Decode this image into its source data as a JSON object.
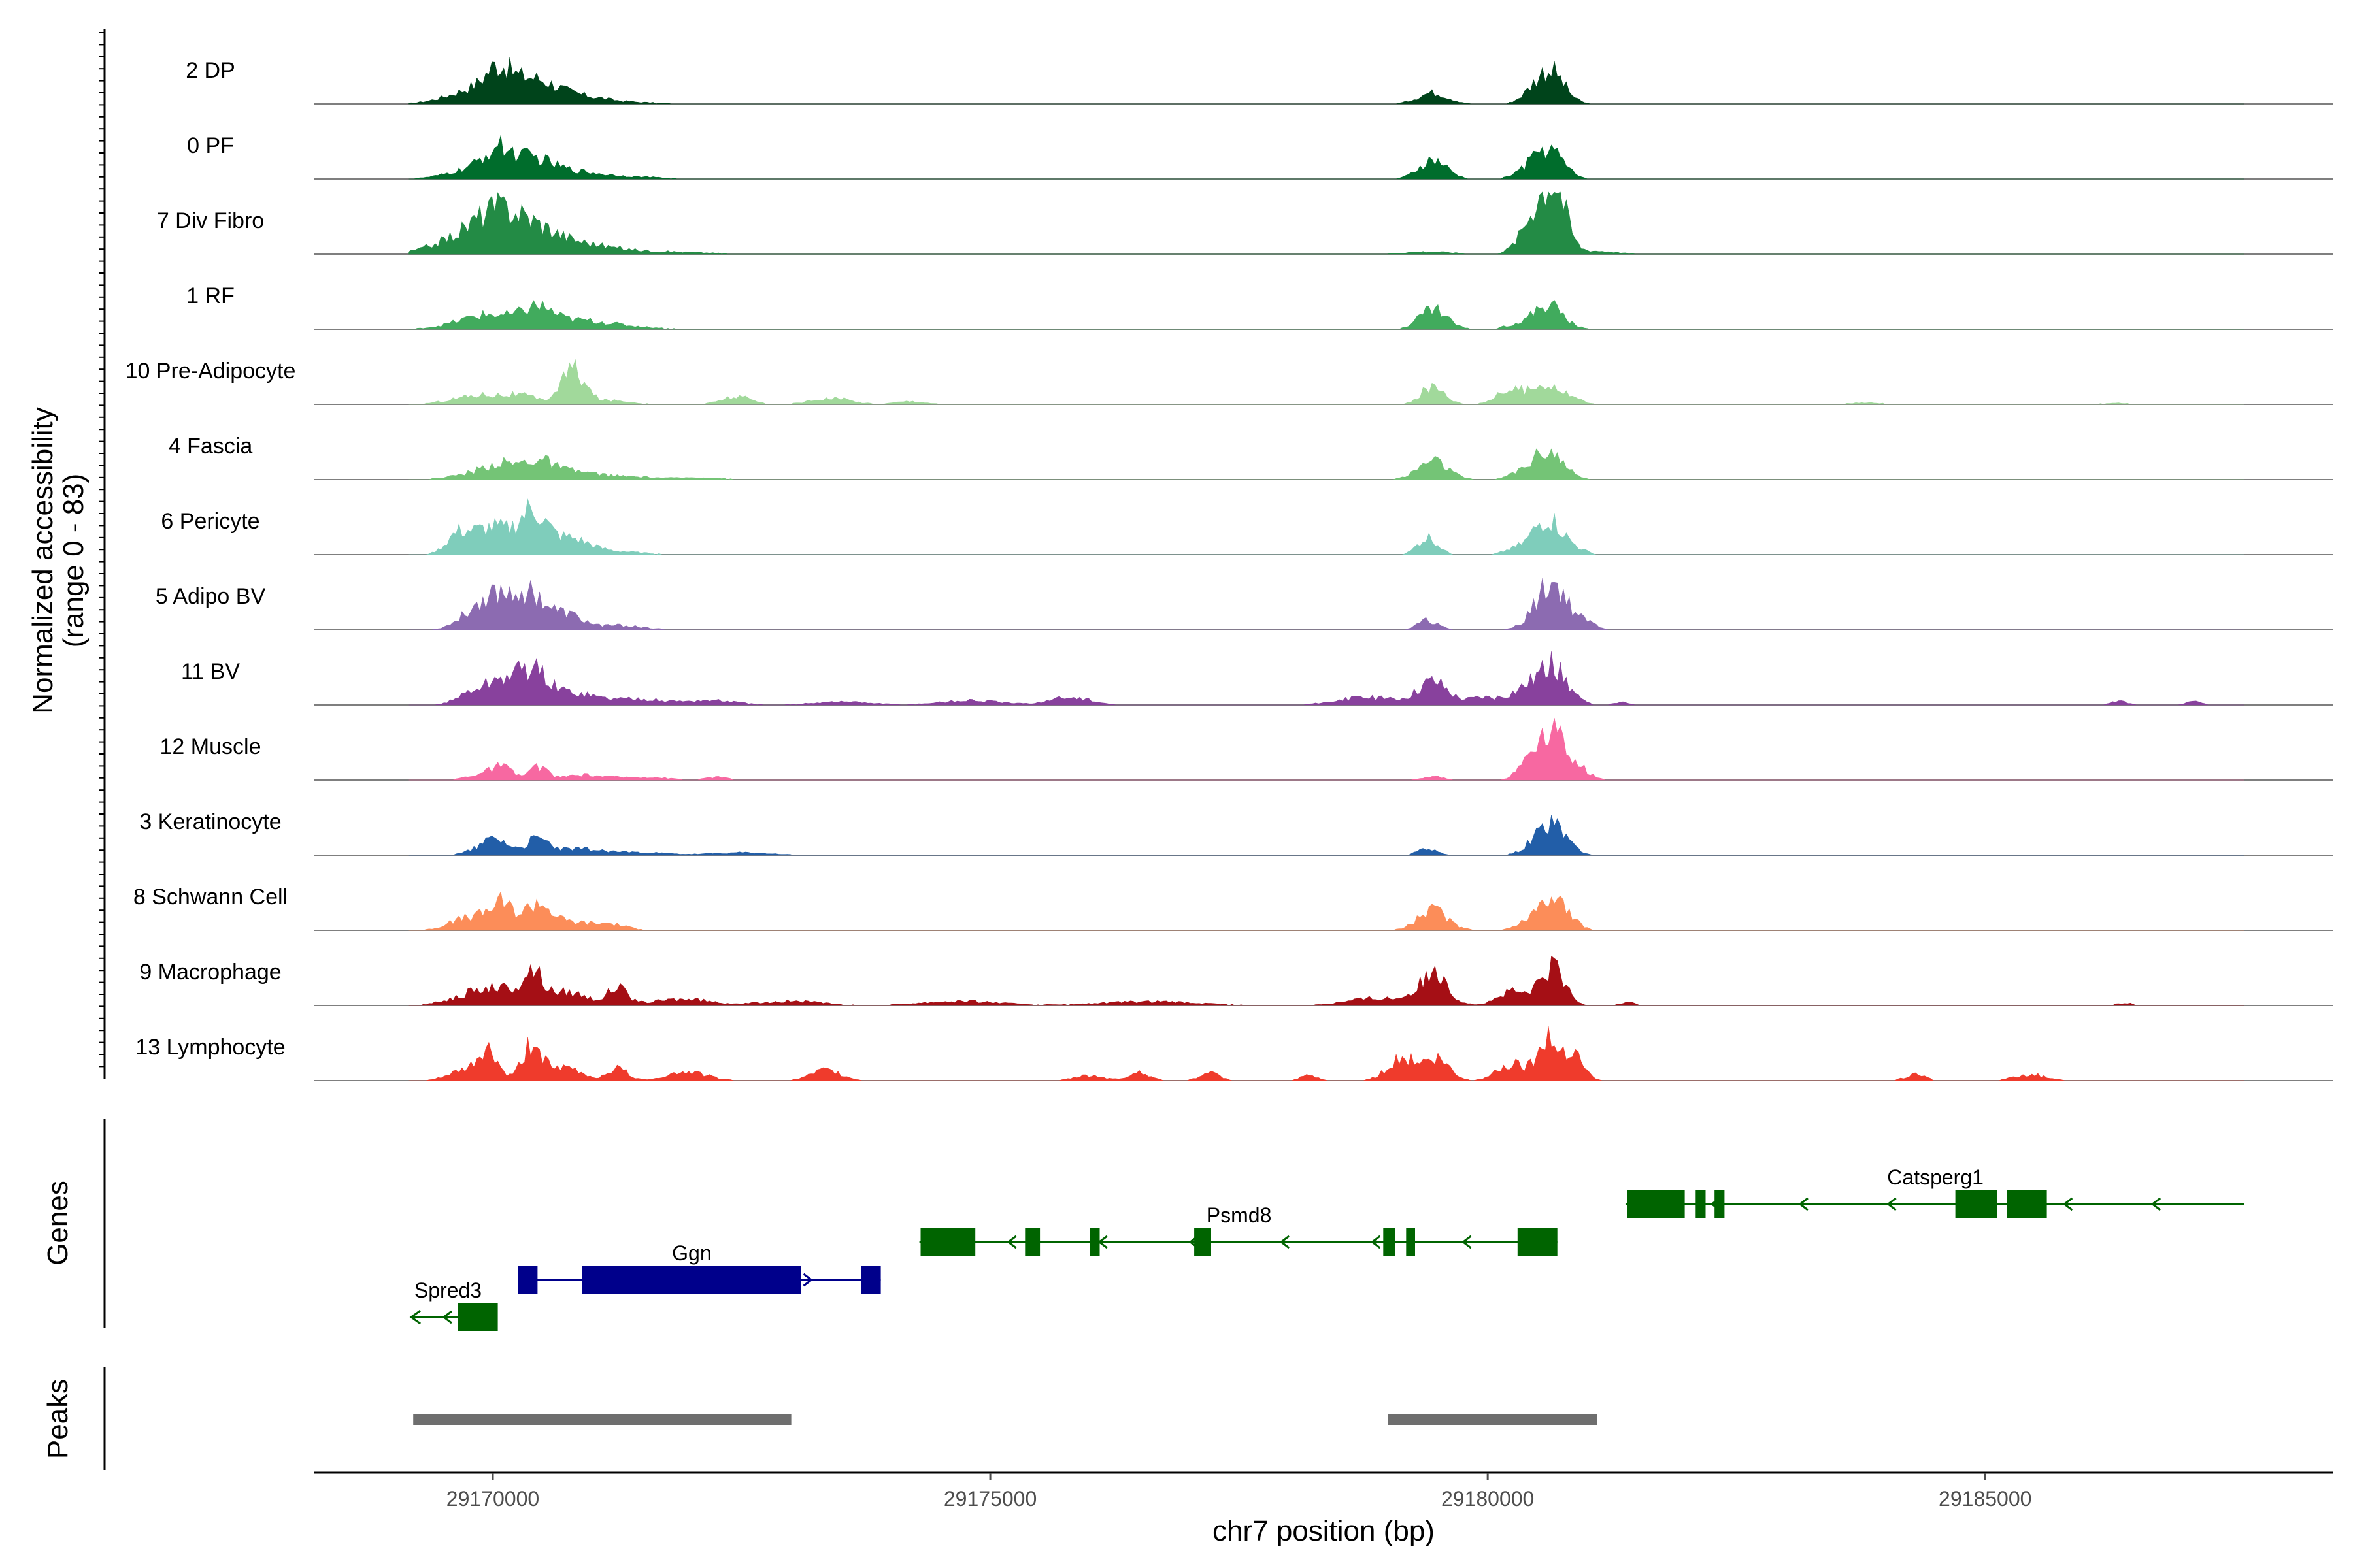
{
  "chart_data": {
    "type": "area",
    "title": "",
    "ylabel_line1": "Normalized accessibility",
    "ylabel_line2": "(range 0 - 83)",
    "y_range": [
      0,
      83
    ],
    "xlabel": "chr7 position (bp)",
    "xlim": [
      29168200,
      29188500
    ],
    "x_ticks": [
      29170000,
      29175000,
      29180000,
      29185000
    ],
    "x_tick_labels": [
      "29170000",
      "29175000",
      "29180000",
      "29185000"
    ],
    "series": [
      {
        "name": "2 DP",
        "color": "#00441b",
        "amp": 1.0,
        "peaks": [
          [
            29169900,
            300,
            0.26
          ],
          [
            29170050,
            110,
            0.29
          ],
          [
            29170400,
            220,
            0.22
          ],
          [
            29170500,
            350,
            0.14
          ],
          [
            29170950,
            250,
            0.05
          ],
          [
            29171400,
            350,
            0.02
          ],
          [
            29179450,
            150,
            0.18
          ],
          [
            29180400,
            100,
            0.07
          ],
          [
            29180620,
            140,
            0.55
          ]
        ]
      },
      {
        "name": "0 PF",
        "color": "#006d2c",
        "amp": 1.0,
        "peaks": [
          [
            29169950,
            300,
            0.22
          ],
          [
            29170050,
            120,
            0.26
          ],
          [
            29170400,
            200,
            0.25
          ],
          [
            29170800,
            250,
            0.1
          ],
          [
            29171300,
            350,
            0.04
          ],
          [
            29179450,
            140,
            0.29
          ],
          [
            29180350,
            120,
            0.06
          ],
          [
            29180600,
            150,
            0.49
          ]
        ]
      },
      {
        "name": "7 Div Fibro",
        "color": "#238b45",
        "amp": 1.0,
        "peaks": [
          [
            29169600,
            250,
            0.2
          ],
          [
            29170000,
            220,
            0.52
          ],
          [
            29170350,
            250,
            0.38
          ],
          [
            29170800,
            350,
            0.16
          ],
          [
            29171600,
            500,
            0.04
          ],
          [
            29179400,
            250,
            0.04
          ],
          [
            29180550,
            160,
            0.9
          ],
          [
            29180700,
            100,
            0.55
          ],
          [
            29181100,
            200,
            0.05
          ]
        ]
      },
      {
        "name": "1 RF",
        "color": "#41ab5d",
        "amp": 1.0,
        "peaks": [
          [
            29169700,
            250,
            0.06
          ],
          [
            29170000,
            250,
            0.2
          ],
          [
            29170450,
            150,
            0.28
          ],
          [
            29170850,
            300,
            0.14
          ],
          [
            29171400,
            300,
            0.03
          ],
          [
            29179450,
            140,
            0.34
          ],
          [
            29180250,
            100,
            0.06
          ],
          [
            29180600,
            150,
            0.4
          ]
        ]
      },
      {
        "name": "10 Pre-Adipocyte",
        "color": "#a1d99b",
        "amp": 1.0,
        "peaks": [
          [
            29169650,
            200,
            0.06
          ],
          [
            29169950,
            200,
            0.13
          ],
          [
            29170300,
            150,
            0.12
          ],
          [
            29170800,
            120,
            0.55
          ],
          [
            29171200,
            200,
            0.06
          ],
          [
            29172450,
            150,
            0.12
          ],
          [
            29173400,
            200,
            0.1
          ],
          [
            29174200,
            150,
            0.05
          ],
          [
            29179450,
            120,
            0.28
          ],
          [
            29180250,
            150,
            0.24
          ],
          [
            29180600,
            120,
            0.33
          ],
          [
            29180850,
            100,
            0.1
          ],
          [
            29183800,
            150,
            0.03
          ],
          [
            29186300,
            150,
            0.02
          ]
        ]
      },
      {
        "name": "4 Fascia",
        "color": "#74c476",
        "amp": 1.0,
        "peaks": [
          [
            29169900,
            250,
            0.12
          ],
          [
            29170100,
            150,
            0.16
          ],
          [
            29170450,
            150,
            0.26
          ],
          [
            29170800,
            250,
            0.12
          ],
          [
            29171400,
            300,
            0.04
          ],
          [
            29172100,
            200,
            0.03
          ],
          [
            29179450,
            150,
            0.3
          ],
          [
            29180300,
            100,
            0.08
          ],
          [
            29180600,
            150,
            0.48
          ]
        ]
      },
      {
        "name": "6 Pericyte",
        "color": "#7fcdbb",
        "amp": 1.0,
        "peaks": [
          [
            29169650,
            120,
            0.28
          ],
          [
            29170000,
            200,
            0.43
          ],
          [
            29170400,
            130,
            0.62
          ],
          [
            29170750,
            200,
            0.25
          ],
          [
            29171200,
            300,
            0.05
          ],
          [
            29179400,
            100,
            0.28
          ],
          [
            29180250,
            100,
            0.07
          ],
          [
            29180600,
            150,
            0.58
          ],
          [
            29180900,
            100,
            0.06
          ]
        ]
      },
      {
        "name": "5 Adipo BV",
        "color": "#8c6bb1",
        "amp": 1.0,
        "peaks": [
          [
            29169750,
            150,
            0.12
          ],
          [
            29170050,
            200,
            0.55
          ],
          [
            29170400,
            150,
            0.46
          ],
          [
            29170750,
            150,
            0.22
          ],
          [
            29171250,
            250,
            0.07
          ],
          [
            29179400,
            100,
            0.15
          ],
          [
            29180400,
            100,
            0.05
          ],
          [
            29180650,
            150,
            0.75
          ],
          [
            29181000,
            100,
            0.1
          ]
        ]
      },
      {
        "name": "11 BV",
        "color": "#88419d",
        "amp": 1.0,
        "peaks": [
          [
            29169800,
            150,
            0.2
          ],
          [
            29170100,
            150,
            0.35
          ],
          [
            29170400,
            150,
            0.52
          ],
          [
            29170800,
            200,
            0.18
          ],
          [
            29171400,
            300,
            0.1
          ],
          [
            29172200,
            250,
            0.07
          ],
          [
            29173500,
            300,
            0.05
          ],
          [
            29174800,
            300,
            0.07
          ],
          [
            29175800,
            200,
            0.12
          ],
          [
            29178800,
            300,
            0.12
          ],
          [
            29179450,
            150,
            0.38
          ],
          [
            29179950,
            150,
            0.12
          ],
          [
            29180350,
            150,
            0.22
          ],
          [
            29180650,
            150,
            0.6
          ],
          [
            29181350,
            80,
            0.04
          ],
          [
            29186350,
            80,
            0.06
          ],
          [
            29187100,
            80,
            0.05
          ]
        ]
      },
      {
        "name": "12 Muscle",
        "color": "#f768a1",
        "amp": 1.0,
        "peaks": [
          [
            29169900,
            150,
            0.1
          ],
          [
            29170100,
            100,
            0.18
          ],
          [
            29170450,
            90,
            0.21
          ],
          [
            29170900,
            200,
            0.08
          ],
          [
            29171500,
            250,
            0.05
          ],
          [
            29172250,
            100,
            0.05
          ],
          [
            29179450,
            100,
            0.06
          ],
          [
            29180400,
            100,
            0.2
          ],
          [
            29180650,
            150,
            0.8
          ],
          [
            29180950,
            100,
            0.1
          ]
        ]
      },
      {
        "name": "3 Keratinocyte",
        "color": "#225ea8",
        "amp": 1.0,
        "peaks": [
          [
            29169900,
            150,
            0.1
          ],
          [
            29170050,
            120,
            0.22
          ],
          [
            29170450,
            120,
            0.25
          ],
          [
            29170850,
            200,
            0.09
          ],
          [
            29171400,
            300,
            0.05
          ],
          [
            29172500,
            300,
            0.04
          ],
          [
            29179400,
            100,
            0.1
          ],
          [
            29180600,
            150,
            0.48
          ],
          [
            29180800,
            100,
            0.1
          ]
        ]
      },
      {
        "name": "8 Schwann Cell",
        "color": "#fc8d59",
        "amp": 1.0,
        "peaks": [
          [
            29169650,
            150,
            0.1
          ],
          [
            29169950,
            200,
            0.22
          ],
          [
            29170100,
            100,
            0.28
          ],
          [
            29170450,
            130,
            0.42
          ],
          [
            29170800,
            200,
            0.13
          ],
          [
            29171200,
            150,
            0.09
          ],
          [
            29179450,
            150,
            0.32
          ],
          [
            29180350,
            100,
            0.07
          ],
          [
            29180650,
            150,
            0.58
          ]
        ]
      },
      {
        "name": "9 Macrophage",
        "color": "#a50f15",
        "amp": 1.0,
        "peaks": [
          [
            29169700,
            200,
            0.12
          ],
          [
            29170050,
            200,
            0.26
          ],
          [
            29170400,
            100,
            0.48
          ],
          [
            29170750,
            200,
            0.22
          ],
          [
            29171250,
            100,
            0.26
          ],
          [
            29171900,
            300,
            0.1
          ],
          [
            29173000,
            300,
            0.07
          ],
          [
            29174700,
            400,
            0.07
          ],
          [
            29176600,
            500,
            0.06
          ],
          [
            29178900,
            300,
            0.12
          ],
          [
            29179450,
            150,
            0.45
          ],
          [
            29180250,
            150,
            0.22
          ],
          [
            29180650,
            120,
            0.62
          ],
          [
            29181400,
            80,
            0.05
          ],
          [
            29186400,
            80,
            0.04
          ]
        ]
      },
      {
        "name": "13 Lymphocyte",
        "color": "#ef3b2c",
        "amp": 1.0,
        "peaks": [
          [
            29169700,
            150,
            0.15
          ],
          [
            29169950,
            100,
            0.46
          ],
          [
            29170400,
            100,
            0.6
          ],
          [
            29170750,
            150,
            0.2
          ],
          [
            29171250,
            100,
            0.2
          ],
          [
            29171950,
            200,
            0.14
          ],
          [
            29173350,
            150,
            0.16
          ],
          [
            29176000,
            150,
            0.08
          ],
          [
            29176500,
            100,
            0.14
          ],
          [
            29177200,
            100,
            0.12
          ],
          [
            29178200,
            80,
            0.08
          ],
          [
            29179150,
            150,
            0.36
          ],
          [
            29179500,
            120,
            0.32
          ],
          [
            29180250,
            150,
            0.28
          ],
          [
            29180600,
            100,
            0.6
          ],
          [
            29180850,
            100,
            0.5
          ],
          [
            29184300,
            100,
            0.1
          ],
          [
            29185450,
            150,
            0.1
          ]
        ]
      }
    ],
    "genes": [
      {
        "name": "Spred3",
        "strand": "-",
        "color": "#006400",
        "row": 3,
        "start": 29169180,
        "end": 29169900,
        "exons": [
          [
            29169650,
            29170050
          ]
        ]
      },
      {
        "name": "Ggn",
        "strand": "+",
        "color": "#00008b",
        "row": 2,
        "start": 29170250,
        "end": 29173900,
        "exons": [
          [
            29170250,
            29170450
          ],
          [
            29170900,
            29173100
          ],
          [
            29173700,
            29173900
          ]
        ]
      },
      {
        "name": "Psmd8",
        "strand": "-",
        "color": "#006400",
        "row": 1,
        "start": 29174300,
        "end": 29180700,
        "exons": [
          [
            29174300,
            29174850
          ],
          [
            29175350,
            29175500
          ],
          [
            29176000,
            29176100
          ],
          [
            29177050,
            29177220
          ],
          [
            29178950,
            29179070
          ],
          [
            29179180,
            29179270
          ],
          [
            29180300,
            29180700
          ]
        ]
      },
      {
        "name": "Catsperg1",
        "strand": "-",
        "color": "#006400",
        "row": 0,
        "start": 29181400,
        "end": 29187600,
        "exons": [
          [
            29181400,
            29181980
          ],
          [
            29182090,
            29182190
          ],
          [
            29182280,
            29182380
          ],
          [
            29184700,
            29185120
          ],
          [
            29185220,
            29185620
          ]
        ]
      }
    ],
    "genes_label": "Genes",
    "peaks_label": "Peaks",
    "peak_regions": [
      [
        29169200,
        29173000
      ],
      [
        29179000,
        29181100
      ]
    ]
  }
}
